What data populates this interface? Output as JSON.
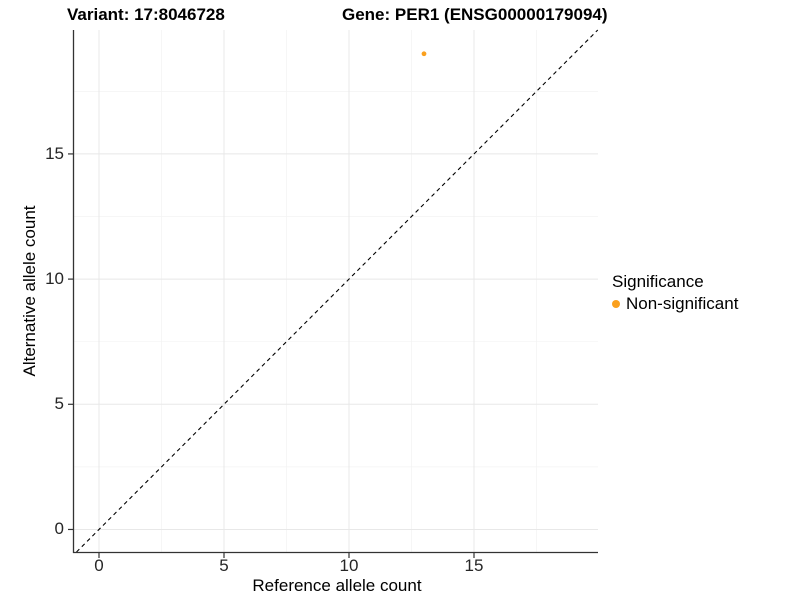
{
  "chart_data": {
    "type": "scatter",
    "titles": {
      "variant": "Variant: 17:8046728",
      "gene": "Gene: PER1 (ENSG00000179094)"
    },
    "xlabel": "Reference allele count",
    "ylabel": "Alternative allele count",
    "x_ticks": [
      0,
      5,
      10,
      15
    ],
    "y_ticks": [
      0,
      5,
      10,
      15
    ],
    "x_minor_ticks": [
      2.5,
      7.5,
      12.5,
      17.5
    ],
    "y_minor_ticks": [
      2.5,
      7.5,
      12.5,
      17.5
    ],
    "xlim": [
      -1.04,
      19.96
    ],
    "ylim": [
      -0.9,
      19.95
    ],
    "grid": true,
    "points": [
      {
        "x": 13,
        "y": 19,
        "series": "Non-significant"
      }
    ],
    "identity_line": {
      "style": "dashed",
      "equation": "y = x"
    },
    "legend": {
      "title": "Significance",
      "position": "right",
      "items": [
        {
          "label": "Non-significant",
          "color": "#FAA01E"
        }
      ]
    },
    "colors": {
      "point": "#FAA01E",
      "grid_major": "#E8E8E8",
      "grid_minor": "#F3F3F3",
      "axis_line": "#333333",
      "tick_mark": "#333333",
      "background": "#FFFFFF"
    }
  }
}
